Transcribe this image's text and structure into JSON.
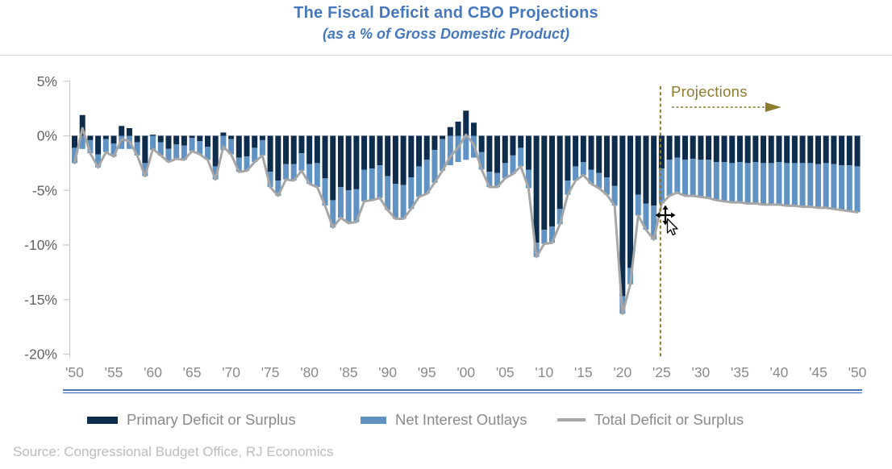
{
  "header": {
    "title": "The Fiscal Deficit and CBO Projections",
    "subtitle": "(as a % of Gross Domestic Product)",
    "title_color": "#4678BD"
  },
  "chart_data": {
    "type": "bar",
    "stacked": true,
    "title": "The Fiscal Deficit and CBO Projections",
    "subtitle": "(as a % of Gross Domestic Product)",
    "xlabel": "",
    "ylabel": "",
    "ylim": [
      -20,
      5
    ],
    "grid": "zero-line-only",
    "legend_position": "bottom",
    "years_start": 1950,
    "years_end": 2050,
    "series": [
      {
        "name": "Primary Deficit or Surplus",
        "type": "bar",
        "color": "#0E2C4C",
        "values": [
          -1.1,
          1.9,
          -0.4,
          -1.7,
          -0.3,
          -0.7,
          0.9,
          0.7,
          -0.6,
          -2.5,
          0.1,
          -0.6,
          -1.2,
          -0.8,
          -0.9,
          -0.2,
          -0.5,
          -1.0,
          -2.8,
          0.3,
          -0.3,
          -2.0,
          -1.9,
          -1.1,
          -0.4,
          -3.3,
          -4.1,
          -2.6,
          -2.6,
          -1.6,
          -2.6,
          -2.5,
          -3.9,
          -5.9,
          -4.7,
          -5.0,
          -4.9,
          -3.1,
          -3.0,
          -2.7,
          -3.7,
          -4.4,
          -4.5,
          -3.8,
          -2.8,
          -2.2,
          -1.3,
          -0.3,
          0.8,
          1.3,
          2.3,
          1.2,
          -1.5,
          -3.3,
          -3.4,
          -2.5,
          -1.8,
          -1.1,
          -3.1,
          -9.8,
          -8.6,
          -8.3,
          -6.7,
          -4.1,
          -2.8,
          -2.4,
          -3.1,
          -3.4,
          -3.8,
          -4.6,
          -14.7,
          -12.1,
          -5.4,
          -6.2,
          -6.4,
          -3.0,
          -2.2,
          -2.0,
          -2.2,
          -2.1,
          -2.2,
          -2.2,
          -2.4,
          -2.4,
          -2.5,
          -2.4,
          -2.5,
          -2.4,
          -2.5,
          -2.5,
          -2.4,
          -2.5,
          -2.5,
          -2.5,
          -2.5,
          -2.6,
          -2.5,
          -2.6,
          -2.7,
          -2.7,
          -2.8
        ]
      },
      {
        "name": "Net Interest Outlays",
        "type": "bar",
        "color": "#6093C3",
        "values": [
          -1.4,
          -1.2,
          -1.2,
          -1.2,
          -1.2,
          -1.2,
          -1.2,
          -1.2,
          -1.2,
          -1.2,
          -1.3,
          -1.2,
          -1.2,
          -1.3,
          -1.3,
          -1.2,
          -1.2,
          -1.2,
          -1.2,
          -1.3,
          -1.4,
          -1.3,
          -1.3,
          -1.3,
          -1.4,
          -1.4,
          -1.4,
          -1.4,
          -1.5,
          -1.6,
          -1.8,
          -2.2,
          -2.5,
          -2.5,
          -2.8,
          -3.0,
          -3.0,
          -2.9,
          -2.9,
          -3.0,
          -3.1,
          -3.2,
          -3.1,
          -2.9,
          -2.8,
          -3.1,
          -3.0,
          -2.9,
          -2.7,
          -2.4,
          -2.2,
          -2.0,
          -1.6,
          -1.4,
          -1.3,
          -1.4,
          -1.7,
          -1.7,
          -1.7,
          -1.3,
          -1.3,
          -1.5,
          -1.4,
          -1.3,
          -1.3,
          -1.2,
          -1.3,
          -1.4,
          -1.6,
          -1.8,
          -1.6,
          -1.5,
          -1.9,
          -2.4,
          -3.1,
          -3.2,
          -3.3,
          -3.2,
          -3.3,
          -3.4,
          -3.4,
          -3.5,
          -3.5,
          -3.6,
          -3.6,
          -3.7,
          -3.7,
          -3.8,
          -3.8,
          -3.8,
          -3.9,
          -3.9,
          -3.9,
          -4.0,
          -4.0,
          -4.0,
          -4.1,
          -4.1,
          -4.1,
          -4.2,
          -4.2
        ]
      },
      {
        "name": "Total Deficit or Surplus",
        "type": "line",
        "color": "#A6A6A6",
        "values": [
          -2.5,
          0.7,
          -1.6,
          -2.9,
          -1.5,
          -1.9,
          -0.3,
          -0.5,
          -1.8,
          -3.7,
          -1.2,
          -1.8,
          -2.4,
          -2.1,
          -2.2,
          -1.4,
          -1.7,
          -2.2,
          -4.0,
          -1.0,
          -1.7,
          -3.3,
          -3.2,
          -2.4,
          -1.8,
          -4.7,
          -5.5,
          -4.0,
          -4.1,
          -3.2,
          -4.4,
          -4.7,
          -6.4,
          -8.4,
          -7.5,
          -8.0,
          -7.9,
          -6.0,
          -5.9,
          -5.7,
          -6.8,
          -7.6,
          -7.6,
          -6.7,
          -5.6,
          -5.3,
          -4.3,
          -3.2,
          -1.9,
          -1.1,
          0.1,
          -0.8,
          -3.1,
          -4.7,
          -4.7,
          -3.9,
          -3.5,
          -2.8,
          -4.8,
          -11.1,
          -9.9,
          -9.8,
          -8.1,
          -5.4,
          -4.1,
          -3.6,
          -4.4,
          -4.8,
          -5.4,
          -6.4,
          -16.3,
          -13.6,
          -7.3,
          -8.6,
          -9.5,
          -6.2,
          -5.5,
          -5.2,
          -5.5,
          -5.5,
          -5.6,
          -5.7,
          -5.9,
          -6.0,
          -6.1,
          -6.1,
          -6.2,
          -6.2,
          -6.3,
          -6.3,
          -6.3,
          -6.4,
          -6.4,
          -6.5,
          -6.5,
          -6.6,
          -6.6,
          -6.7,
          -6.8,
          -6.9,
          -7.0
        ]
      }
    ],
    "y_ticks": {
      "values": [
        5,
        0,
        -5,
        -10,
        -15,
        -20
      ],
      "labels": [
        "5%",
        "0%",
        "-5%",
        "-10%",
        "-15%",
        "-20%"
      ]
    },
    "x_ticks": {
      "years": [
        1950,
        1955,
        1960,
        1965,
        1970,
        1975,
        1980,
        1985,
        1990,
        1995,
        2000,
        2005,
        2010,
        2015,
        2020,
        2025,
        2030,
        2035,
        2040,
        2045,
        2050
      ],
      "labels": [
        "'50",
        "'55",
        "'60",
        "'65",
        "'70",
        "'75",
        "'80",
        "'85",
        "'90",
        "'95",
        "'00",
        "'05",
        "'10",
        "'15",
        "'20",
        "'25",
        "'30",
        "'35",
        "'40",
        "'45",
        "'50"
      ]
    },
    "annotation": {
      "label": "Projections",
      "projection_start_year": 2025,
      "color": "#8D7B2D"
    },
    "colors": {
      "axis_line": "#C9C9C9",
      "zero_gridline": "#D9D9D9",
      "y_tick_label": "#636363",
      "x_tick_label": "#8A8A8A",
      "bottom_double_line": "#4472C4"
    }
  },
  "footer": {
    "source": "Source: Congressional Budget Office, RJ Economics"
  }
}
